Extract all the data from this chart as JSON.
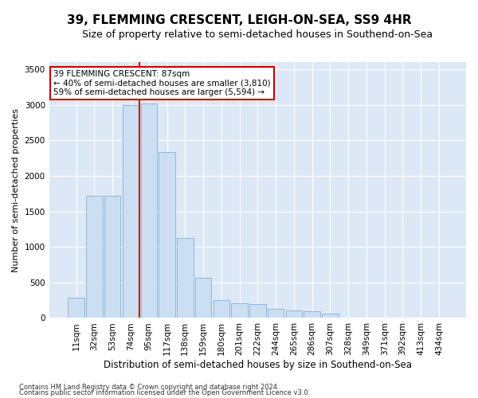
{
  "title": "39, FLEMMING CRESCENT, LEIGH-ON-SEA, SS9 4HR",
  "subtitle": "Size of property relative to semi-detached houses in Southend-on-Sea",
  "xlabel": "Distribution of semi-detached houses by size in Southend-on-Sea",
  "ylabel": "Number of semi-detached properties",
  "categories": [
    "11sqm",
    "32sqm",
    "53sqm",
    "74sqm",
    "95sqm",
    "117sqm",
    "138sqm",
    "159sqm",
    "180sqm",
    "201sqm",
    "222sqm",
    "244sqm",
    "265sqm",
    "286sqm",
    "307sqm",
    "328sqm",
    "349sqm",
    "371sqm",
    "392sqm",
    "413sqm",
    "434sqm"
  ],
  "values": [
    290,
    1720,
    1720,
    3000,
    3020,
    2330,
    1120,
    560,
    250,
    210,
    200,
    130,
    110,
    100,
    60,
    0,
    0,
    0,
    0,
    0,
    0
  ],
  "bar_color": "#ccdff2",
  "bar_edgecolor": "#7fb0d8",
  "vline_color": "#cc0000",
  "annotation_text": "39 FLEMMING CRESCENT: 87sqm\n← 40% of semi-detached houses are smaller (3,810)\n59% of semi-detached houses are larger (5,594) →",
  "annotation_box_facecolor": "#ffffff",
  "annotation_box_edgecolor": "#cc0000",
  "ylim": [
    0,
    3600
  ],
  "yticks": [
    0,
    500,
    1000,
    1500,
    2000,
    2500,
    3000,
    3500
  ],
  "grid_color": "#ffffff",
  "plot_background": "#dce8f5",
  "footer1": "Contains HM Land Registry data © Crown copyright and database right 2024.",
  "footer2": "Contains public sector information licensed under the Open Government Licence v3.0.",
  "title_fontsize": 11,
  "subtitle_fontsize": 9,
  "xlabel_fontsize": 8.5,
  "ylabel_fontsize": 8,
  "tick_fontsize": 7.5,
  "annotation_fontsize": 7.5,
  "footer_fontsize": 6
}
